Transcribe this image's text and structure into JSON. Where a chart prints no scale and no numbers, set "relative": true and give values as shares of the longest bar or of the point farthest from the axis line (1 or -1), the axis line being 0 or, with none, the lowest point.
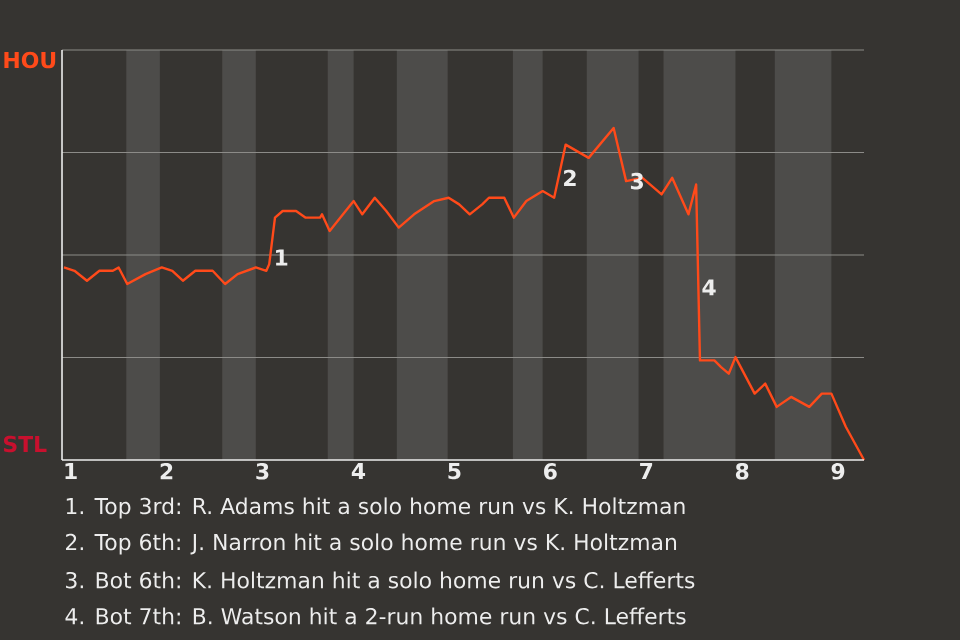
{
  "chart_data": {
    "type": "line",
    "relative": true,
    "x": [
      0.93,
      1.04,
      1.17,
      1.3,
      1.44,
      1.5,
      1.59,
      1.78,
      1.95,
      2.06,
      2.17,
      2.3,
      2.48,
      2.61,
      2.74,
      2.93,
      3.04,
      3.07,
      3.13,
      3.21,
      3.35,
      3.45,
      3.6,
      3.62,
      3.7,
      3.81,
      3.95,
      4.04,
      4.17,
      4.29,
      4.42,
      4.58,
      4.79,
      4.94,
      5.05,
      5.16,
      5.29,
      5.36,
      5.52,
      5.62,
      5.75,
      5.92,
      6.04,
      6.16,
      6.4,
      6.66,
      6.79,
      6.96,
      7.16,
      7.27,
      7.44,
      7.52,
      7.56,
      7.71,
      7.78,
      7.86,
      7.93,
      8.13,
      8.24,
      8.36,
      8.51,
      8.7,
      8.83,
      8.93,
      9.08,
      9.27
    ],
    "series": [
      {
        "color": "#ff4a1a",
        "values": [
          0.58,
          0.57,
          0.54,
          0.57,
          0.57,
          0.58,
          0.53,
          0.56,
          0.58,
          0.57,
          0.54,
          0.57,
          0.57,
          0.53,
          0.56,
          0.58,
          0.57,
          0.59,
          0.73,
          0.75,
          0.75,
          0.73,
          0.73,
          0.74,
          0.69,
          0.73,
          0.78,
          0.74,
          0.79,
          0.75,
          0.7,
          0.74,
          0.78,
          0.79,
          0.77,
          0.74,
          0.77,
          0.79,
          0.79,
          0.73,
          0.78,
          0.81,
          0.79,
          0.95,
          0.91,
          1,
          0.84,
          0.85,
          0.8,
          0.85,
          0.74,
          0.83,
          0.3,
          0.3,
          0.28,
          0.26,
          0.31,
          0.2,
          0.23,
          0.16,
          0.19,
          0.16,
          0.2,
          0.2,
          0.1,
          0
        ]
      }
    ],
    "xlim": [
      0.91,
      9.27
    ],
    "xticks": [
      1,
      2,
      3,
      4,
      5,
      6,
      7,
      8,
      9
    ],
    "grid": "y",
    "marker": "none",
    "line_style": "solid",
    "bands": [
      {
        "axis": "x",
        "from": 1.58,
        "to": 1.93,
        "color": "#4d4c4a"
      },
      {
        "axis": "x",
        "from": 2.58,
        "to": 2.93,
        "color": "#4d4c4a"
      },
      {
        "axis": "x",
        "from": 3.68,
        "to": 3.95,
        "color": "#4d4c4a"
      },
      {
        "axis": "x",
        "from": 4.4,
        "to": 4.93,
        "color": "#4d4c4a"
      },
      {
        "axis": "x",
        "from": 5.61,
        "to": 5.92,
        "color": "#4d4c4a"
      },
      {
        "axis": "x",
        "from": 6.38,
        "to": 6.92,
        "color": "#4d4c4a"
      },
      {
        "axis": "x",
        "from": 7.18,
        "to": 7.93,
        "color": "#4d4c4a"
      },
      {
        "axis": "x",
        "from": 8.34,
        "to": 8.93,
        "color": "#4d4c4a"
      }
    ],
    "annotations": [
      "HOU",
      "STL",
      {
        "text": "1",
        "x": 3.08,
        "y": 0.61
      },
      {
        "text": "2",
        "x": 6.09,
        "y": 0.85
      },
      {
        "text": "3",
        "x": 6.79,
        "y": 0.84
      },
      {
        "text": "4",
        "x": 7.54,
        "y": 0.52
      },
      "1. Top 3rd: R. Adams hit a solo home run vs K. Holtzman",
      "2. Top 6th: J. Narron hit a solo home run vs K. Holtzman",
      "3. Bot 6th: K. Holtzman hit a solo home run vs C. Lefferts",
      "4. Bot 7th: B. Watson hit a 2-run home run vs C. Lefferts"
    ]
  }
}
